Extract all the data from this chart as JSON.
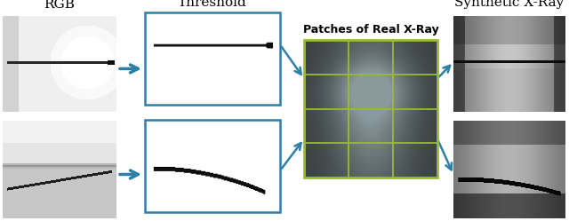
{
  "title_rgb": "RGB",
  "title_threshold": "Threshold",
  "title_synthetic": "Synthetic X-Ray",
  "title_patches": "Patches of Real X-Ray",
  "bg_color": "#ffffff",
  "arrow_color": "#2d7fa8",
  "box_edge_color": "#2d7fa8",
  "grid_color": "#99bb33",
  "line_color": "#111111",
  "figsize": [
    6.4,
    2.49
  ],
  "dpi": 100
}
